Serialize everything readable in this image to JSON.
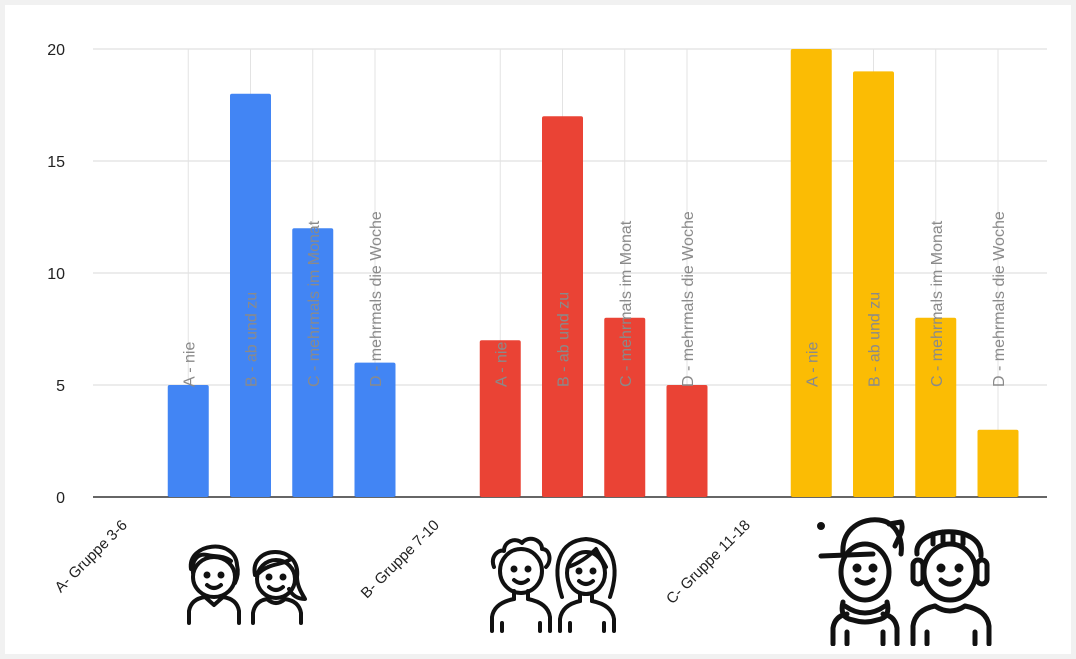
{
  "chart_data": {
    "type": "bar",
    "ylim": [
      0,
      20
    ],
    "yticks": [
      0,
      5,
      10,
      15,
      20
    ],
    "grid": true,
    "groups": [
      {
        "label": "A- Gruppe 3-6",
        "color": "#4285f4",
        "bars": [
          {
            "label": "A - nie",
            "value": 5
          },
          {
            "label": "B - ab und zu",
            "value": 18
          },
          {
            "label": "C - mehrmals im Monat",
            "value": 12
          },
          {
            "label": "D - mehrmals die Woche",
            "value": 6
          }
        ]
      },
      {
        "label": "B- Gruppe 7-10",
        "color": "#ea4335",
        "bars": [
          {
            "label": "A - nie",
            "value": 7
          },
          {
            "label": "B - ab und zu",
            "value": 17
          },
          {
            "label": "C - mehrmals im Monat",
            "value": 8
          },
          {
            "label": "D - mehrmals die Woche",
            "value": 5
          }
        ]
      },
      {
        "label": "C- Gruppe 11-18",
        "color": "#fbbc04",
        "bars": [
          {
            "label": "A - nie",
            "value": 20
          },
          {
            "label": "B - ab und zu",
            "value": 19
          },
          {
            "label": "C - mehrmals im Monat",
            "value": 8
          },
          {
            "label": "D - mehrmals die Woche",
            "value": 3
          }
        ]
      }
    ]
  },
  "icons": [
    "children-icon",
    "kids-icon",
    "teens-icon"
  ]
}
